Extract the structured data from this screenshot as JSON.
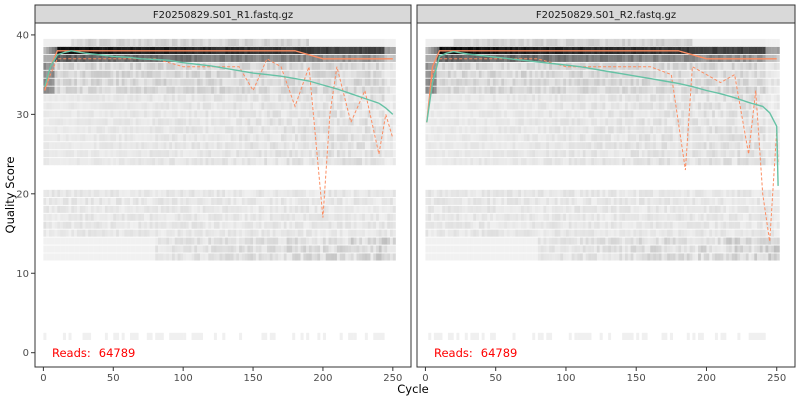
{
  "chart_data": {
    "type": "heatmap",
    "xlabel": "Cycle",
    "ylabel": "Quality Score",
    "xlim": [
      -6,
      263
    ],
    "ylim": [
      -1.8,
      41.5
    ],
    "x_ticks": [
      0,
      50,
      100,
      150,
      200,
      250
    ],
    "y_ticks": [
      0,
      10,
      20,
      30,
      40
    ],
    "grid": false,
    "colors": {
      "heat_high": "#000000",
      "heat_low": "#f5f5f5",
      "mean_line": "#66c2a5",
      "quantile_line": "#fc8d62",
      "reads_text": "#ff0000",
      "strip_bg": "#d9d9d9",
      "panel_border": "#333333"
    },
    "panels": [
      {
        "title": "F20250829.S01_R1.fastq.gz",
        "reads_prefix": "Reads:",
        "reads_value": "64789",
        "heat_profile": {
          "high": 38,
          "mid": 36.5,
          "low": 32,
          "end_drop": 8
        },
        "mean_quality": {
          "cycles": [
            1,
            5,
            10,
            15,
            20,
            30,
            40,
            50,
            60,
            70,
            80,
            90,
            100,
            110,
            120,
            130,
            140,
            150,
            160,
            170,
            180,
            190,
            200,
            210,
            220,
            230,
            240,
            245,
            250
          ],
          "values": [
            33.5,
            36,
            37.5,
            37.8,
            38,
            37.7,
            37.5,
            37.3,
            37.2,
            37,
            36.9,
            36.8,
            36.5,
            36.3,
            36.1,
            35.8,
            35.5,
            35.2,
            35,
            34.8,
            34.5,
            34.2,
            33.7,
            33.2,
            32.6,
            32,
            31.4,
            30.8,
            30
          ]
        },
        "median_quality": {
          "cycles": [
            1,
            5,
            10,
            20,
            40,
            60,
            80,
            100,
            120,
            140,
            160,
            180,
            200,
            220,
            240,
            250
          ],
          "values": [
            33,
            36,
            38,
            38,
            38,
            38,
            38,
            38,
            38,
            38,
            38,
            38,
            37,
            37,
            37,
            37
          ]
        },
        "q25_quality": {
          "cycles": [
            1,
            5,
            10,
            20,
            40,
            60,
            80,
            100,
            120,
            140,
            150,
            160,
            170,
            180,
            190,
            200,
            205,
            210,
            220,
            230,
            240,
            245,
            250
          ],
          "values": [
            33,
            35,
            37,
            37,
            37,
            37,
            37,
            36,
            36,
            36,
            33,
            37,
            36,
            31,
            36,
            17,
            30,
            36,
            29,
            33,
            25,
            30,
            27
          ]
        }
      },
      {
        "title": "F20250829.S01_R2.fastq.gz",
        "reads_prefix": "Reads:",
        "reads_value": "64789",
        "heat_profile": {
          "high": 38,
          "mid": 36.5,
          "low": 32,
          "end_drop": 10
        },
        "mean_quality": {
          "cycles": [
            1,
            5,
            10,
            15,
            20,
            30,
            40,
            50,
            60,
            70,
            80,
            90,
            100,
            110,
            120,
            130,
            140,
            150,
            160,
            170,
            180,
            190,
            200,
            210,
            220,
            230,
            240,
            245,
            250,
            251
          ],
          "values": [
            29,
            34,
            37.3,
            37.7,
            37.9,
            37.6,
            37.4,
            37.2,
            37,
            36.8,
            36.6,
            36.4,
            36.2,
            36,
            35.7,
            35.4,
            35.1,
            34.8,
            34.5,
            34.2,
            33.9,
            33.5,
            33,
            32.6,
            32.1,
            31.5,
            31,
            30.2,
            28.5,
            21
          ]
        },
        "median_quality": {
          "cycles": [
            1,
            5,
            10,
            20,
            40,
            60,
            80,
            100,
            120,
            140,
            160,
            180,
            200,
            220,
            240,
            250
          ],
          "values": [
            29,
            36,
            38,
            38,
            38,
            38,
            38,
            38,
            38,
            38,
            38,
            38,
            37,
            37,
            37,
            37
          ]
        },
        "q25_quality": {
          "cycles": [
            1,
            5,
            10,
            20,
            40,
            60,
            80,
            100,
            120,
            140,
            160,
            175,
            185,
            190,
            200,
            210,
            220,
            230,
            235,
            240,
            245,
            250,
            251
          ],
          "values": [
            29,
            35,
            37,
            37,
            37,
            37,
            37,
            36,
            36,
            36,
            36,
            35,
            23,
            36,
            35,
            34,
            35,
            25,
            33,
            20,
            14,
            28,
            24
          ]
        }
      }
    ]
  }
}
